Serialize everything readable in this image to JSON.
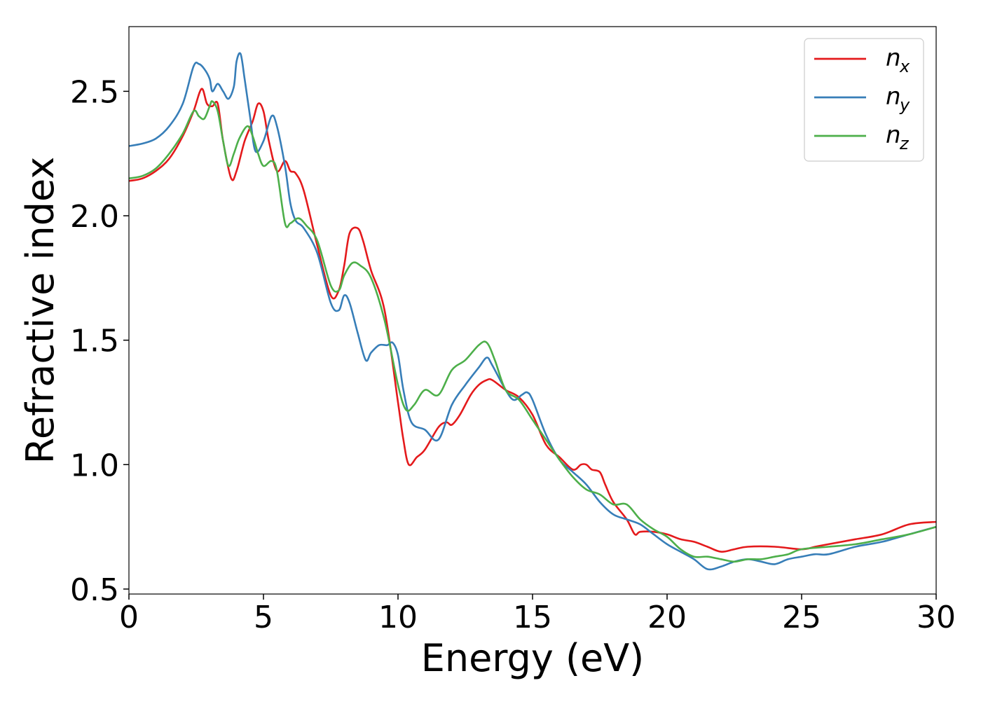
{
  "chart_data": {
    "type": "line",
    "title": "",
    "xlabel": "Energy (eV)",
    "ylabel": "Refractive index",
    "xlim": [
      0,
      30
    ],
    "ylim": [
      0.48,
      2.76
    ],
    "xticks": [
      0,
      5,
      10,
      15,
      20,
      25,
      30
    ],
    "xtick_labels": [
      "0",
      "5",
      "10",
      "15",
      "20",
      "25",
      "30"
    ],
    "yticks": [
      0.5,
      1.0,
      1.5,
      2.0,
      2.5
    ],
    "ytick_labels": [
      "0.5",
      "1.0",
      "1.5",
      "2.0",
      "2.5"
    ],
    "grid": false,
    "legend_position": "top-right",
    "series": [
      {
        "name": "n",
        "subscript": "x",
        "color": "#e41a1c",
        "x": [
          0,
          0.5,
          1.0,
          1.5,
          2.0,
          2.4,
          2.7,
          2.9,
          3.1,
          3.3,
          3.5,
          3.8,
          4.0,
          4.3,
          4.6,
          4.8,
          5.0,
          5.2,
          5.5,
          5.8,
          6.0,
          6.2,
          6.5,
          7.0,
          7.5,
          7.8,
          8.0,
          8.2,
          8.5,
          8.7,
          9.0,
          9.5,
          10.0,
          10.2,
          10.4,
          10.7,
          11.0,
          11.5,
          11.8,
          12.0,
          12.3,
          12.7,
          13.0,
          13.3,
          13.5,
          14.0,
          14.5,
          15.0,
          15.5,
          16.0,
          16.5,
          16.8,
          17.0,
          17.2,
          17.5,
          17.7,
          18.0,
          18.5,
          18.8,
          19.0,
          19.5,
          20.0,
          20.5,
          21.0,
          21.5,
          22.0,
          22.5,
          23.0,
          24.0,
          25.0,
          25.5,
          26.0,
          27.0,
          28.0,
          29.0,
          30.0
        ],
        "y": [
          2.14,
          2.15,
          2.18,
          2.23,
          2.32,
          2.42,
          2.51,
          2.45,
          2.44,
          2.45,
          2.3,
          2.15,
          2.18,
          2.3,
          2.38,
          2.45,
          2.42,
          2.3,
          2.18,
          2.22,
          2.18,
          2.17,
          2.1,
          1.88,
          1.68,
          1.7,
          1.8,
          1.93,
          1.95,
          1.9,
          1.78,
          1.62,
          1.25,
          1.1,
          1.0,
          1.03,
          1.06,
          1.15,
          1.17,
          1.16,
          1.2,
          1.28,
          1.32,
          1.34,
          1.34,
          1.3,
          1.27,
          1.2,
          1.08,
          1.03,
          0.98,
          1.0,
          1.0,
          0.98,
          0.97,
          0.92,
          0.85,
          0.78,
          0.72,
          0.73,
          0.73,
          0.72,
          0.7,
          0.69,
          0.67,
          0.65,
          0.66,
          0.67,
          0.67,
          0.66,
          0.67,
          0.68,
          0.7,
          0.72,
          0.76,
          0.77
        ]
      },
      {
        "name": "n",
        "subscript": "y",
        "color": "#377eb8",
        "x": [
          0,
          0.5,
          1.0,
          1.5,
          2.0,
          2.4,
          2.6,
          2.8,
          3.0,
          3.1,
          3.3,
          3.5,
          3.7,
          3.9,
          4.0,
          4.15,
          4.3,
          4.5,
          4.7,
          5.0,
          5.3,
          5.5,
          5.8,
          6.0,
          6.2,
          6.5,
          7.0,
          7.5,
          7.8,
          8.0,
          8.2,
          8.5,
          8.8,
          9.0,
          9.3,
          9.6,
          9.8,
          10.0,
          10.2,
          10.5,
          11.0,
          11.5,
          12.0,
          12.5,
          13.0,
          13.3,
          13.5,
          14.0,
          14.3,
          14.6,
          14.8,
          15.0,
          15.5,
          16.0,
          16.5,
          17.0,
          17.5,
          18.0,
          18.5,
          19.0,
          19.5,
          20.0,
          20.5,
          21.0,
          21.5,
          22.0,
          22.5,
          23.0,
          23.5,
          24.0,
          24.5,
          25.0,
          25.5,
          26.0,
          27.0,
          28.0,
          29.0,
          30.0
        ],
        "y": [
          2.28,
          2.29,
          2.31,
          2.36,
          2.45,
          2.6,
          2.61,
          2.59,
          2.55,
          2.5,
          2.53,
          2.5,
          2.47,
          2.52,
          2.62,
          2.65,
          2.55,
          2.4,
          2.26,
          2.3,
          2.4,
          2.36,
          2.2,
          2.05,
          1.98,
          1.95,
          1.85,
          1.65,
          1.62,
          1.68,
          1.65,
          1.53,
          1.42,
          1.45,
          1.48,
          1.48,
          1.49,
          1.44,
          1.3,
          1.17,
          1.14,
          1.1,
          1.24,
          1.32,
          1.39,
          1.43,
          1.4,
          1.3,
          1.26,
          1.28,
          1.29,
          1.26,
          1.12,
          1.02,
          0.97,
          0.92,
          0.85,
          0.8,
          0.78,
          0.76,
          0.72,
          0.68,
          0.65,
          0.62,
          0.58,
          0.59,
          0.61,
          0.62,
          0.61,
          0.6,
          0.62,
          0.63,
          0.64,
          0.64,
          0.67,
          0.69,
          0.72,
          0.75
        ]
      },
      {
        "name": "n",
        "subscript": "z",
        "color": "#4daf4a",
        "x": [
          0,
          0.5,
          1.0,
          1.5,
          2.0,
          2.4,
          2.6,
          2.8,
          3.0,
          3.1,
          3.3,
          3.5,
          3.7,
          3.9,
          4.1,
          4.4,
          4.6,
          4.8,
          5.0,
          5.3,
          5.5,
          5.8,
          6.0,
          6.3,
          6.6,
          7.0,
          7.5,
          7.8,
          8.0,
          8.3,
          8.6,
          9.0,
          9.5,
          10.0,
          10.3,
          10.6,
          11.0,
          11.5,
          12.0,
          12.5,
          13.0,
          13.3,
          13.6,
          14.0,
          14.5,
          15.0,
          15.5,
          16.0,
          16.5,
          17.0,
          17.5,
          18.0,
          18.5,
          19.0,
          19.5,
          20.0,
          20.5,
          21.0,
          21.5,
          22.0,
          22.5,
          23.0,
          23.5,
          24.0,
          24.5,
          25.0,
          26.0,
          27.0,
          28.0,
          29.0,
          30.0
        ],
        "y": [
          2.15,
          2.16,
          2.19,
          2.25,
          2.33,
          2.42,
          2.4,
          2.39,
          2.44,
          2.46,
          2.42,
          2.3,
          2.2,
          2.25,
          2.31,
          2.36,
          2.32,
          2.25,
          2.2,
          2.22,
          2.18,
          1.97,
          1.97,
          1.99,
          1.96,
          1.9,
          1.72,
          1.7,
          1.76,
          1.81,
          1.8,
          1.75,
          1.58,
          1.32,
          1.22,
          1.24,
          1.3,
          1.28,
          1.38,
          1.42,
          1.48,
          1.49,
          1.42,
          1.3,
          1.26,
          1.18,
          1.1,
          1.02,
          0.95,
          0.9,
          0.88,
          0.84,
          0.84,
          0.78,
          0.74,
          0.71,
          0.66,
          0.63,
          0.63,
          0.62,
          0.61,
          0.62,
          0.62,
          0.63,
          0.64,
          0.66,
          0.67,
          0.68,
          0.7,
          0.72,
          0.75
        ]
      }
    ]
  }
}
